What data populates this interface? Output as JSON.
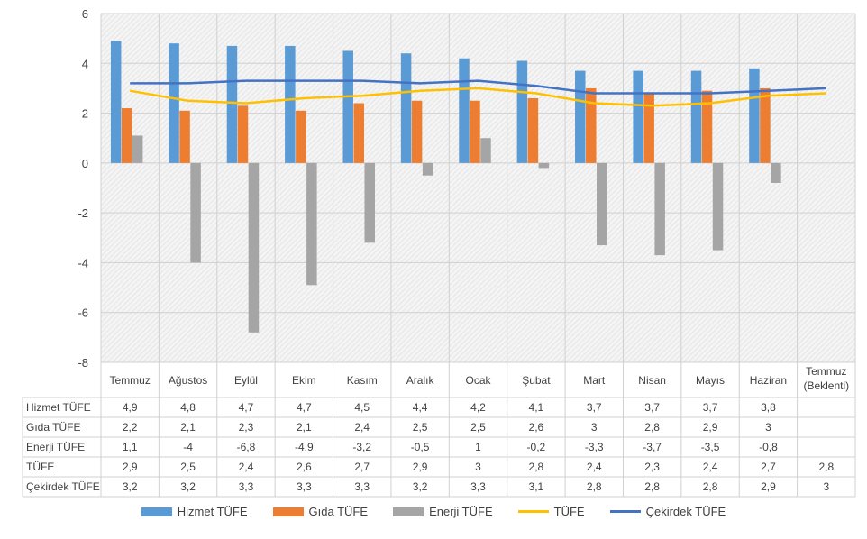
{
  "chart_data": {
    "type": "bar",
    "categories": [
      "Temmuz",
      "Ağustos",
      "Eylül",
      "Ekim",
      "Kasım",
      "Aralık",
      "Ocak",
      "Şubat",
      "Mart",
      "Nisan",
      "Mayıs",
      "Haziran",
      "Temmuz (Beklenti)"
    ],
    "category_lines": [
      [
        "Temmuz"
      ],
      [
        "Ağustos"
      ],
      [
        "Eylül"
      ],
      [
        "Ekim"
      ],
      [
        "Kasım"
      ],
      [
        "Aralık"
      ],
      [
        "Ocak"
      ],
      [
        "Şubat"
      ],
      [
        "Mart"
      ],
      [
        "Nisan"
      ],
      [
        "Mayıs"
      ],
      [
        "Haziran"
      ],
      [
        "Temmuz",
        "(Beklenti)"
      ]
    ],
    "ylim": [
      -8,
      6
    ],
    "yticks": [
      "6",
      "4",
      "2",
      "0",
      "-2",
      "-4",
      "-6",
      "-8"
    ],
    "ytick_values": [
      6,
      4,
      2,
      0,
      -2,
      -4,
      -6,
      -8
    ],
    "grid": true,
    "legend_position": "bottom",
    "series": [
      {
        "name": "Hizmet TÜFE",
        "kind": "bar",
        "color": "#5B9BD5",
        "values": [
          4.9,
          4.8,
          4.7,
          4.7,
          4.5,
          4.4,
          4.2,
          4.1,
          3.7,
          3.7,
          3.7,
          3.8,
          null
        ],
        "labels": [
          "4,9",
          "4,8",
          "4,7",
          "4,7",
          "4,5",
          "4,4",
          "4,2",
          "4,1",
          "3,7",
          "3,7",
          "3,7",
          "3,8",
          ""
        ]
      },
      {
        "name": "Gıda TÜFE",
        "kind": "bar",
        "color": "#ED7D31",
        "values": [
          2.2,
          2.1,
          2.3,
          2.1,
          2.4,
          2.5,
          2.5,
          2.6,
          3,
          2.8,
          2.9,
          3,
          null
        ],
        "labels": [
          "2,2",
          "2,1",
          "2,3",
          "2,1",
          "2,4",
          "2,5",
          "2,5",
          "2,6",
          "3",
          "2,8",
          "2,9",
          "3",
          ""
        ]
      },
      {
        "name": "Enerji TÜFE",
        "kind": "bar",
        "color": "#A5A5A5",
        "values": [
          1.1,
          -4,
          -6.8,
          -4.9,
          -3.2,
          -0.5,
          1,
          -0.2,
          -3.3,
          -3.7,
          -3.5,
          -0.8,
          null
        ],
        "labels": [
          "1,1",
          "-4",
          "-6,8",
          "-4,9",
          "-3,2",
          "-0,5",
          "1",
          "-0,2",
          "-3,3",
          "-3,7",
          "-3,5",
          "-0,8",
          ""
        ]
      },
      {
        "name": "TÜFE",
        "kind": "line",
        "color": "#FFC000",
        "values": [
          2.9,
          2.5,
          2.4,
          2.6,
          2.7,
          2.9,
          3,
          2.8,
          2.4,
          2.3,
          2.4,
          2.7,
          2.8
        ],
        "labels": [
          "2,9",
          "2,5",
          "2,4",
          "2,6",
          "2,7",
          "2,9",
          "3",
          "2,8",
          "2,4",
          "2,3",
          "2,4",
          "2,7",
          "2,8"
        ]
      },
      {
        "name": "Çekirdek TÜFE",
        "kind": "line",
        "color": "#4472C4",
        "values": [
          3.2,
          3.2,
          3.3,
          3.3,
          3.3,
          3.2,
          3.3,
          3.1,
          2.8,
          2.8,
          2.8,
          2.9,
          3
        ],
        "labels": [
          "3,2",
          "3,2",
          "3,3",
          "3,3",
          "3,3",
          "3,2",
          "3,3",
          "3,1",
          "2,8",
          "2,8",
          "2,8",
          "2,9",
          "3"
        ]
      }
    ]
  }
}
